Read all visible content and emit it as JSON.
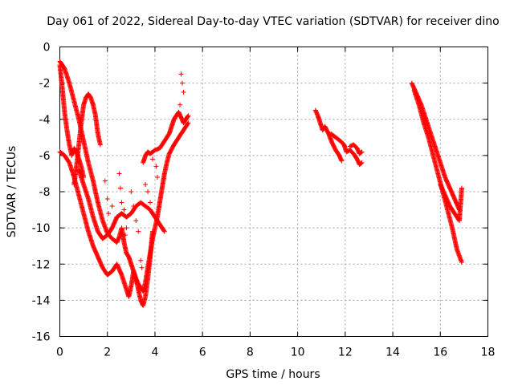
{
  "chart_data": {
    "type": "scatter",
    "title": "Day 061 of 2022, Sidereal Day-to-day VTEC variation (SDTVAR) for receiver dino",
    "xlabel": "GPS time / hours",
    "ylabel": "SDTVAR / TECUs",
    "xlim": [
      0,
      18
    ],
    "ylim": [
      -16,
      0
    ],
    "xticks": [
      0,
      2,
      4,
      6,
      8,
      10,
      12,
      14,
      16,
      18
    ],
    "yticks": [
      0,
      -2,
      -4,
      -6,
      -8,
      -10,
      -12,
      -14,
      -16
    ],
    "grid": true,
    "marker": "+",
    "color": "#ff0000",
    "series": [
      {
        "name": "dino",
        "tracks": [
          [
            [
              0.0,
              -0.8
            ],
            [
              0.2,
              -1.2
            ],
            [
              0.4,
              -2.0
            ],
            [
              0.6,
              -3.0
            ],
            [
              0.8,
              -4.0
            ],
            [
              1.0,
              -5.2
            ],
            [
              1.2,
              -6.4
            ],
            [
              1.4,
              -7.4
            ],
            [
              1.6,
              -8.6
            ],
            [
              1.8,
              -9.6
            ],
            [
              2.0,
              -10.3
            ],
            [
              2.2,
              -10.6
            ],
            [
              2.4,
              -10.8
            ],
            [
              2.5,
              -10.5
            ],
            [
              2.6,
              -10.0
            ],
            [
              2.7,
              -10.8
            ],
            [
              2.8,
              -11.4
            ],
            [
              2.9,
              -11.6
            ],
            [
              3.0,
              -12.0
            ],
            [
              3.1,
              -12.4
            ],
            [
              3.2,
              -12.8
            ],
            [
              3.3,
              -13.1
            ],
            [
              3.4,
              -13.3
            ],
            [
              3.5,
              -13.5
            ],
            [
              3.6,
              -13.0
            ],
            [
              3.7,
              -12.2
            ],
            [
              3.8,
              -11.4
            ],
            [
              3.9,
              -10.6
            ],
            [
              4.0,
              -10.0
            ],
            [
              4.1,
              -9.4
            ],
            [
              4.2,
              -8.6
            ],
            [
              4.3,
              -7.8
            ],
            [
              4.4,
              -7.0
            ],
            [
              4.5,
              -6.4
            ],
            [
              4.6,
              -5.9
            ],
            [
              4.8,
              -5.4
            ],
            [
              5.0,
              -5.0
            ],
            [
              5.2,
              -4.6
            ],
            [
              5.4,
              -4.2
            ]
          ],
          [
            [
              0.0,
              -5.8
            ],
            [
              0.2,
              -6.0
            ],
            [
              0.4,
              -6.4
            ],
            [
              0.6,
              -7.2
            ],
            [
              0.8,
              -8.2
            ],
            [
              1.0,
              -9.2
            ],
            [
              1.2,
              -10.2
            ],
            [
              1.4,
              -11.0
            ],
            [
              1.6,
              -11.6
            ],
            [
              1.8,
              -12.2
            ],
            [
              2.0,
              -12.6
            ],
            [
              2.2,
              -12.4
            ],
            [
              2.4,
              -12.0
            ],
            [
              2.6,
              -12.6
            ],
            [
              2.8,
              -13.4
            ],
            [
              2.9,
              -13.8
            ],
            [
              3.0,
              -13.2
            ],
            [
              3.1,
              -12.4
            ],
            [
              3.2,
              -12.8
            ],
            [
              3.3,
              -13.4
            ],
            [
              3.4,
              -14.0
            ],
            [
              3.5,
              -14.3
            ],
            [
              3.6,
              -13.8
            ],
            [
              3.7,
              -12.8
            ],
            [
              3.8,
              -11.6
            ],
            [
              3.9,
              -10.2
            ]
          ],
          [
            [
              0.0,
              -1.0
            ],
            [
              0.1,
              -2.2
            ],
            [
              0.2,
              -3.6
            ],
            [
              0.3,
              -4.6
            ],
            [
              0.4,
              -5.4
            ],
            [
              0.5,
              -6.0
            ],
            [
              0.6,
              -5.6
            ],
            [
              0.7,
              -5.8
            ],
            [
              0.8,
              -6.2
            ],
            [
              0.9,
              -6.6
            ],
            [
              1.0,
              -7.2
            ]
          ],
          [
            [
              0.6,
              -7.6
            ],
            [
              0.7,
              -6.6
            ],
            [
              0.8,
              -5.4
            ],
            [
              0.9,
              -4.2
            ],
            [
              1.0,
              -3.2
            ],
            [
              1.1,
              -2.8
            ],
            [
              1.2,
              -2.6
            ],
            [
              1.3,
              -2.8
            ],
            [
              1.4,
              -3.2
            ],
            [
              1.5,
              -3.8
            ],
            [
              1.6,
              -4.8
            ],
            [
              1.7,
              -5.4
            ]
          ],
          [
            [
              0.8,
              -6.8
            ],
            [
              1.0,
              -7.6
            ],
            [
              1.2,
              -8.4
            ],
            [
              1.4,
              -9.4
            ],
            [
              1.6,
              -10.2
            ],
            [
              1.8,
              -10.6
            ],
            [
              2.0,
              -10.4
            ],
            [
              2.2,
              -10.0
            ],
            [
              2.4,
              -9.4
            ],
            [
              2.6,
              -9.2
            ],
            [
              2.8,
              -9.4
            ],
            [
              3.0,
              -9.2
            ],
            [
              3.2,
              -8.8
            ],
            [
              3.4,
              -8.6
            ],
            [
              3.6,
              -8.8
            ],
            [
              3.8,
              -9.0
            ],
            [
              4.0,
              -9.4
            ],
            [
              4.2,
              -9.8
            ],
            [
              4.4,
              -10.2
            ]
          ],
          [
            [
              3.5,
              -6.4
            ],
            [
              3.6,
              -6.0
            ],
            [
              3.7,
              -5.8
            ],
            [
              3.8,
              -5.9
            ],
            [
              4.0,
              -5.7
            ],
            [
              4.2,
              -5.6
            ],
            [
              4.4,
              -5.2
            ],
            [
              4.6,
              -4.8
            ],
            [
              4.7,
              -4.4
            ],
            [
              4.8,
              -4.0
            ],
            [
              4.9,
              -3.8
            ],
            [
              5.0,
              -3.6
            ],
            [
              5.1,
              -3.9
            ],
            [
              5.2,
              -4.2
            ],
            [
              5.3,
              -4.0
            ],
            [
              5.4,
              -3.8
            ]
          ],
          [
            [
              10.75,
              -3.5
            ],
            [
              10.85,
              -3.8
            ],
            [
              10.95,
              -4.2
            ],
            [
              11.05,
              -4.6
            ],
            [
              11.15,
              -4.4
            ],
            [
              11.3,
              -4.8
            ],
            [
              11.45,
              -5.3
            ],
            [
              11.6,
              -5.7
            ],
            [
              11.75,
              -6.0
            ],
            [
              11.85,
              -6.3
            ]
          ],
          [
            [
              11.4,
              -4.8
            ],
            [
              11.6,
              -5.0
            ],
            [
              11.8,
              -5.2
            ],
            [
              11.95,
              -5.4
            ],
            [
              12.05,
              -5.8
            ],
            [
              12.2,
              -5.7
            ],
            [
              12.35,
              -5.9
            ],
            [
              12.5,
              -6.2
            ],
            [
              12.6,
              -6.5
            ],
            [
              12.7,
              -6.4
            ]
          ],
          [
            [
              12.2,
              -5.5
            ],
            [
              12.35,
              -5.4
            ],
            [
              12.5,
              -5.6
            ],
            [
              12.6,
              -5.9
            ],
            [
              12.7,
              -5.8
            ]
          ],
          [
            [
              14.8,
              -2.0
            ],
            [
              15.0,
              -2.6
            ],
            [
              15.2,
              -3.2
            ],
            [
              15.4,
              -4.0
            ],
            [
              15.6,
              -4.8
            ],
            [
              15.8,
              -5.6
            ],
            [
              16.0,
              -6.4
            ],
            [
              16.2,
              -7.2
            ],
            [
              16.4,
              -7.8
            ],
            [
              16.6,
              -8.4
            ],
            [
              16.8,
              -9.0
            ]
          ],
          [
            [
              14.9,
              -2.4
            ],
            [
              15.1,
              -3.2
            ],
            [
              15.3,
              -4.2
            ],
            [
              15.5,
              -5.0
            ],
            [
              15.7,
              -6.0
            ],
            [
              15.9,
              -7.0
            ],
            [
              16.1,
              -8.0
            ],
            [
              16.3,
              -9.0
            ],
            [
              16.5,
              -10.0
            ],
            [
              16.7,
              -11.2
            ],
            [
              16.9,
              -11.9
            ]
          ],
          [
            [
              16.0,
              -7.6
            ],
            [
              16.2,
              -8.2
            ],
            [
              16.4,
              -8.8
            ],
            [
              16.6,
              -9.2
            ],
            [
              16.8,
              -9.6
            ],
            [
              16.9,
              -7.8
            ]
          ]
        ]
      }
    ],
    "scatter_points": [
      [
        1.9,
        -7.4
      ],
      [
        2.0,
        -8.4
      ],
      [
        2.05,
        -9.2
      ],
      [
        2.2,
        -8.8
      ],
      [
        2.4,
        -9.4
      ],
      [
        2.5,
        -7.0
      ],
      [
        2.55,
        -7.8
      ],
      [
        2.6,
        -8.6
      ],
      [
        2.7,
        -9.0
      ],
      [
        2.75,
        -10.4
      ],
      [
        2.8,
        -10.0
      ],
      [
        3.0,
        -8.0
      ],
      [
        3.1,
        -8.8
      ],
      [
        3.2,
        -9.6
      ],
      [
        3.3,
        -10.2
      ],
      [
        3.15,
        -12.8
      ],
      [
        3.3,
        -13.4
      ],
      [
        3.6,
        -7.6
      ],
      [
        3.7,
        -8.0
      ],
      [
        3.8,
        -8.6
      ],
      [
        3.9,
        -6.2
      ],
      [
        4.05,
        -6.6
      ],
      [
        4.1,
        -7.2
      ],
      [
        4.15,
        -9.0
      ],
      [
        4.3,
        -10.0
      ],
      [
        5.1,
        -1.5
      ],
      [
        5.15,
        -2.0
      ],
      [
        5.2,
        -2.5
      ],
      [
        5.05,
        -3.2
      ],
      [
        3.4,
        -11.8
      ],
      [
        3.45,
        -12.2
      ]
    ]
  }
}
